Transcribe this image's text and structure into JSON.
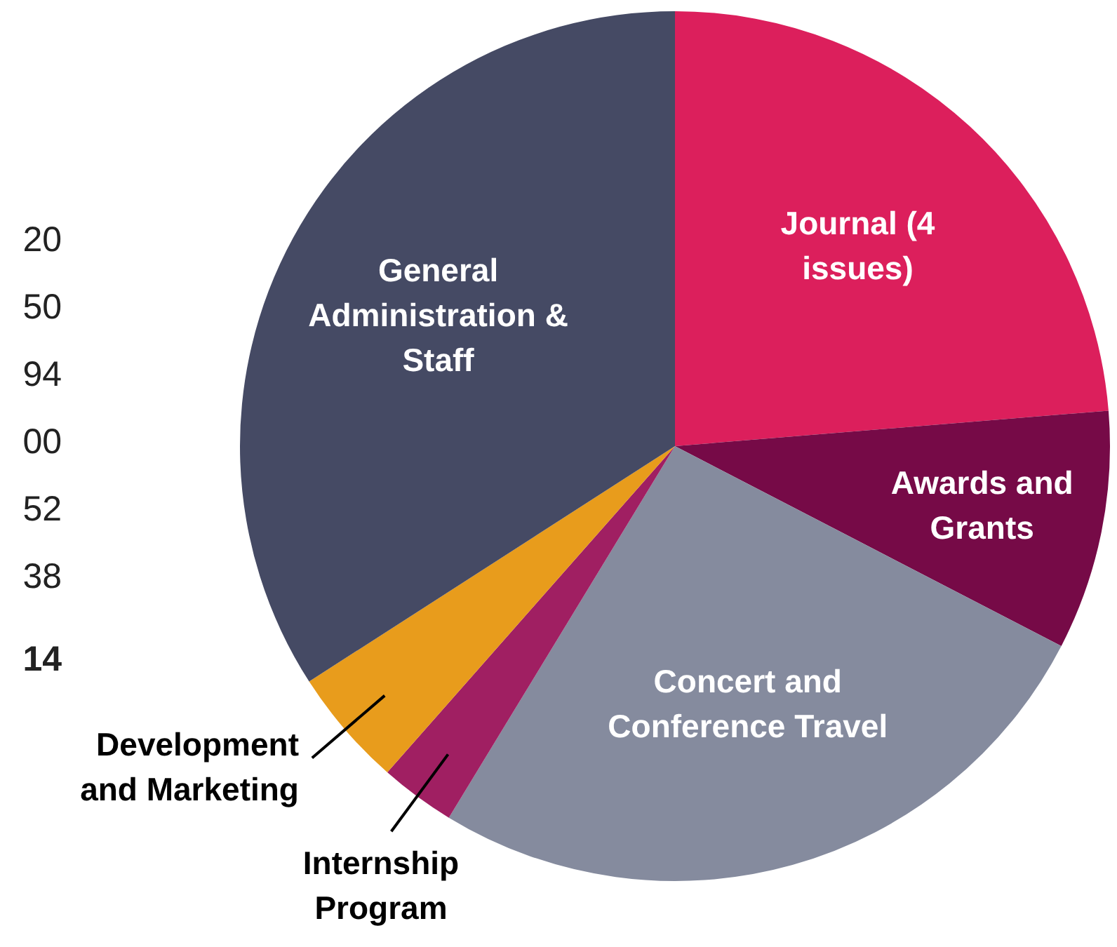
{
  "chart_data": {
    "type": "pie",
    "categories": [
      "Journal (4 issues)",
      "Awards and Grants",
      "Concert and Conference Travel",
      "Internship Program",
      "Development and Marketing",
      "General Administration & Staff"
    ],
    "values": [
      23.7,
      8.9,
      26.1,
      2.8,
      4.4,
      34.1
    ],
    "colors": [
      "#dc1f5c",
      "#760a47",
      "#858b9e",
      "#a01f62",
      "#e89c1c",
      "#454a64"
    ],
    "legend": false,
    "annotations": [
      "20",
      "50",
      "94",
      "00",
      "52",
      "38",
      "14"
    ]
  }
}
